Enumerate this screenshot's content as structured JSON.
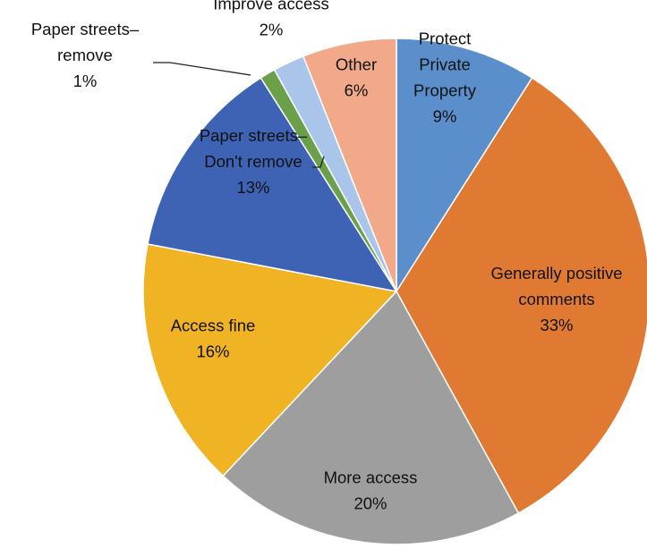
{
  "chart_data": {
    "type": "pie",
    "title": "",
    "slices": [
      {
        "name": "Protect Private Property",
        "value": 9,
        "percent_label": "9%",
        "color": "#5B8FCB",
        "label_lines": [
          "Protect",
          "Private",
          "Property",
          "9%"
        ]
      },
      {
        "name": "Generally positive comments",
        "value": 33,
        "percent_label": "33%",
        "color": "#E07A33",
        "label_lines": [
          "Generally positive",
          "comments",
          "33%"
        ]
      },
      {
        "name": "More access",
        "value": 20,
        "percent_label": "20%",
        "color": "#9E9E9E",
        "label_lines": [
          "More access",
          "20%"
        ]
      },
      {
        "name": "Access fine",
        "value": 16,
        "percent_label": "16%",
        "color": "#F0B324",
        "label_lines": [
          "Access fine",
          "16%"
        ]
      },
      {
        "name": "Paper streets–Don't remove",
        "value": 13,
        "percent_label": "13%",
        "color": "#3E63B5",
        "label_lines": [
          "Paper streets–",
          "Don't remove",
          "13%"
        ]
      },
      {
        "name": "Paper streets–remove",
        "value": 1,
        "percent_label": "1%",
        "color": "#6BA04A",
        "label_lines": [
          "Paper streets–",
          "remove",
          "1%"
        ]
      },
      {
        "name": "Improve access",
        "value": 2,
        "percent_label": "2%",
        "color": "#A9C5EA",
        "label_lines": [
          "Improve access",
          "2%"
        ]
      },
      {
        "name": "Other",
        "value": 6,
        "percent_label": "6%",
        "color": "#F2A98A",
        "label_lines": [
          "Other",
          "6%"
        ]
      }
    ]
  }
}
